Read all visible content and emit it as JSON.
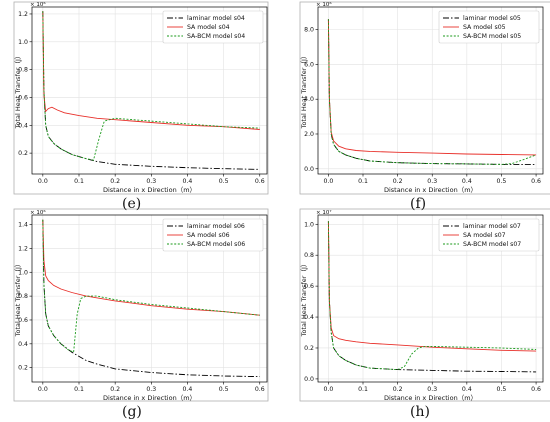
{
  "captions": [
    "(e)",
    "(f)",
    "(g)",
    "(h)"
  ],
  "chart_data": [
    {
      "type": "line",
      "xlabel": "Distance in x Direction（m）",
      "ylabel": "Total Heat Transfer（J）",
      "multiplier": "× 10⁶",
      "xlim": [
        -0.03,
        0.62
      ],
      "ylim": [
        0.05,
        1.25
      ],
      "xticks": [
        "0.0",
        "0.1",
        "0.2",
        "0.3",
        "0.4",
        "0.5",
        "0.6"
      ],
      "yticks": [
        "0.2",
        "0.4",
        "0.6",
        "0.8",
        "1.0",
        "1.2"
      ],
      "legend": "top-right",
      "grid": true,
      "series": [
        {
          "name": "laminar model s04",
          "color": "#000000",
          "style": "dashdot",
          "x": [
            0,
            0.003,
            0.008,
            0.015,
            0.03,
            0.05,
            0.08,
            0.12,
            0.15,
            0.2,
            0.3,
            0.4,
            0.5,
            0.6
          ],
          "y": [
            1.22,
            0.65,
            0.4,
            0.32,
            0.27,
            0.23,
            0.19,
            0.16,
            0.14,
            0.12,
            0.105,
            0.095,
            0.088,
            0.083
          ]
        },
        {
          "name": "SA model s04",
          "color": "#e8302a",
          "style": "solid",
          "x": [
            0,
            0.003,
            0.008,
            0.015,
            0.025,
            0.04,
            0.06,
            0.1,
            0.15,
            0.2,
            0.3,
            0.4,
            0.5,
            0.6
          ],
          "y": [
            1.22,
            0.62,
            0.5,
            0.52,
            0.53,
            0.51,
            0.49,
            0.47,
            0.45,
            0.44,
            0.42,
            0.4,
            0.39,
            0.37
          ]
        },
        {
          "name": "SA-BCM model s04",
          "color": "#1a9a1a",
          "style": "dotted",
          "x": [
            0,
            0.003,
            0.008,
            0.015,
            0.03,
            0.05,
            0.08,
            0.12,
            0.14,
            0.155,
            0.17,
            0.2,
            0.3,
            0.4,
            0.5,
            0.6
          ],
          "y": [
            1.22,
            0.65,
            0.4,
            0.32,
            0.27,
            0.23,
            0.19,
            0.16,
            0.15,
            0.3,
            0.43,
            0.45,
            0.43,
            0.41,
            0.39,
            0.38
          ]
        }
      ]
    },
    {
      "type": "line",
      "xlabel": "Distance in x Direction（m）",
      "ylabel": "Total Heat Transfer（J）",
      "multiplier": "× 10⁶",
      "xlim": [
        -0.03,
        0.62
      ],
      "ylim": [
        -0.3,
        9.3
      ],
      "xticks": [
        "0.0",
        "0.1",
        "0.2",
        "0.3",
        "0.4",
        "0.5",
        "0.6"
      ],
      "yticks": [
        "0.0",
        "2.0",
        "4.0",
        "6.0",
        "8.0"
      ],
      "legend": "top-right",
      "grid": true,
      "series": [
        {
          "name": "laminar model s05",
          "color": "#000000",
          "style": "dashdot",
          "x": [
            0,
            0.003,
            0.008,
            0.015,
            0.03,
            0.05,
            0.08,
            0.12,
            0.2,
            0.3,
            0.4,
            0.5,
            0.6
          ],
          "y": [
            8.6,
            4.0,
            2.0,
            1.4,
            1.0,
            0.8,
            0.6,
            0.45,
            0.35,
            0.3,
            0.28,
            0.25,
            0.25
          ]
        },
        {
          "name": "SA model s05",
          "color": "#e8302a",
          "style": "solid",
          "x": [
            0,
            0.003,
            0.008,
            0.015,
            0.03,
            0.05,
            0.08,
            0.12,
            0.2,
            0.3,
            0.4,
            0.5,
            0.6
          ],
          "y": [
            8.6,
            4.0,
            2.1,
            1.6,
            1.3,
            1.15,
            1.05,
            1.0,
            0.95,
            0.9,
            0.85,
            0.82,
            0.8
          ]
        },
        {
          "name": "SA-BCM model s05",
          "color": "#1a9a1a",
          "style": "dotted",
          "x": [
            0,
            0.003,
            0.008,
            0.015,
            0.03,
            0.05,
            0.08,
            0.12,
            0.2,
            0.3,
            0.4,
            0.5,
            0.53,
            0.56,
            0.6
          ],
          "y": [
            8.6,
            4.0,
            2.0,
            1.4,
            1.0,
            0.8,
            0.6,
            0.45,
            0.35,
            0.3,
            0.28,
            0.25,
            0.3,
            0.5,
            0.8
          ]
        }
      ]
    },
    {
      "type": "line",
      "xlabel": "Distance in x Direction（m）",
      "ylabel": "Total Heat Transfer（J）",
      "multiplier": "× 10⁶",
      "xlim": [
        -0.03,
        0.62
      ],
      "ylim": [
        0.08,
        1.48
      ],
      "xticks": [
        "0.0",
        "0.1",
        "0.2",
        "0.3",
        "0.4",
        "0.5",
        "0.6"
      ],
      "yticks": [
        "0.2",
        "0.4",
        "0.6",
        "0.8",
        "1.0",
        "1.2",
        "1.4"
      ],
      "legend": "top-right",
      "grid": true,
      "series": [
        {
          "name": "laminar model s06",
          "color": "#000000",
          "style": "dashdot",
          "x": [
            0,
            0.003,
            0.008,
            0.015,
            0.03,
            0.05,
            0.08,
            0.12,
            0.15,
            0.2,
            0.3,
            0.4,
            0.5,
            0.6
          ],
          "y": [
            1.44,
            0.9,
            0.65,
            0.55,
            0.47,
            0.4,
            0.33,
            0.26,
            0.23,
            0.19,
            0.16,
            0.14,
            0.13,
            0.125
          ]
        },
        {
          "name": "SA model s06",
          "color": "#e8302a",
          "style": "solid",
          "x": [
            0,
            0.003,
            0.008,
            0.015,
            0.03,
            0.05,
            0.08,
            0.12,
            0.2,
            0.3,
            0.4,
            0.5,
            0.6
          ],
          "y": [
            1.44,
            1.1,
            0.97,
            0.93,
            0.89,
            0.86,
            0.83,
            0.8,
            0.76,
            0.72,
            0.69,
            0.67,
            0.64
          ]
        },
        {
          "name": "SA-BCM model s06",
          "color": "#1a9a1a",
          "style": "dotted",
          "x": [
            0,
            0.003,
            0.008,
            0.015,
            0.03,
            0.05,
            0.07,
            0.085,
            0.095,
            0.105,
            0.12,
            0.15,
            0.2,
            0.3,
            0.4,
            0.5,
            0.6
          ],
          "y": [
            1.44,
            0.9,
            0.65,
            0.55,
            0.47,
            0.4,
            0.35,
            0.33,
            0.65,
            0.78,
            0.8,
            0.8,
            0.77,
            0.73,
            0.7,
            0.67,
            0.64
          ]
        }
      ]
    },
    {
      "type": "line",
      "xlabel": "Distance in x Direction（m）",
      "ylabel": "Total Heat Transfer（J）",
      "multiplier": "× 10⁷",
      "xlim": [
        -0.03,
        0.62
      ],
      "ylim": [
        -0.02,
        1.06
      ],
      "xticks": [
        "0.0",
        "0.1",
        "0.2",
        "0.3",
        "0.4",
        "0.5",
        "0.6"
      ],
      "yticks": [
        "0.0",
        "0.2",
        "0.4",
        "0.6",
        "0.8",
        "1.0"
      ],
      "legend": "top-right",
      "grid": true,
      "series": [
        {
          "name": "laminar model s07",
          "color": "#000000",
          "style": "dashdot",
          "x": [
            0,
            0.003,
            0.008,
            0.015,
            0.03,
            0.05,
            0.08,
            0.12,
            0.2,
            0.3,
            0.4,
            0.5,
            0.6
          ],
          "y": [
            1.02,
            0.5,
            0.3,
            0.2,
            0.15,
            0.12,
            0.09,
            0.07,
            0.06,
            0.055,
            0.05,
            0.048,
            0.045
          ]
        },
        {
          "name": "SA model s07",
          "color": "#e8302a",
          "style": "solid",
          "x": [
            0,
            0.003,
            0.008,
            0.015,
            0.03,
            0.05,
            0.08,
            0.12,
            0.2,
            0.3,
            0.4,
            0.5,
            0.6
          ],
          "y": [
            1.02,
            0.5,
            0.33,
            0.28,
            0.26,
            0.25,
            0.24,
            0.23,
            0.22,
            0.205,
            0.195,
            0.185,
            0.18
          ]
        },
        {
          "name": "SA-BCM model s07",
          "color": "#1a9a1a",
          "style": "dotted",
          "x": [
            0,
            0.003,
            0.008,
            0.015,
            0.03,
            0.05,
            0.08,
            0.12,
            0.2,
            0.22,
            0.24,
            0.26,
            0.28,
            0.3,
            0.4,
            0.5,
            0.6
          ],
          "y": [
            1.02,
            0.5,
            0.3,
            0.2,
            0.15,
            0.12,
            0.09,
            0.07,
            0.06,
            0.08,
            0.16,
            0.2,
            0.21,
            0.21,
            0.205,
            0.2,
            0.19
          ]
        }
      ]
    }
  ]
}
